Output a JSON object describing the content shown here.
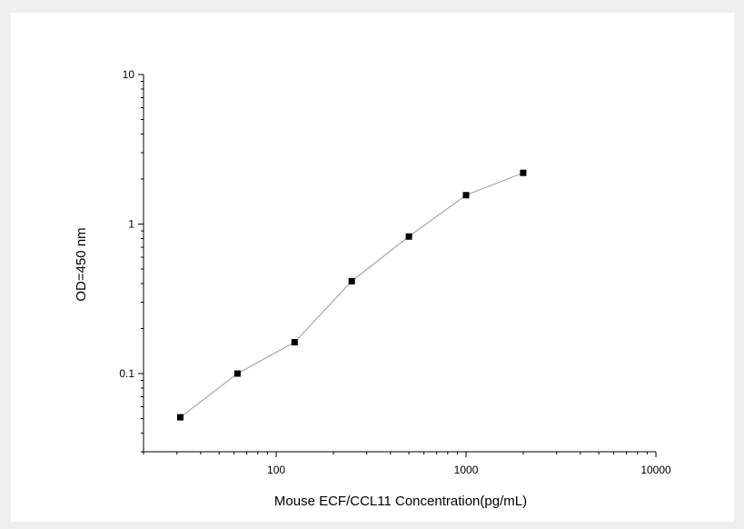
{
  "chart_data": {
    "type": "scatter",
    "xlabel": "Mouse ECF/CCL11  Concentration(pg/mL)",
    "ylabel": "OD=450 nm",
    "x_scale": "log",
    "y_scale": "log",
    "xlim": [
      20,
      10000
    ],
    "ylim": [
      0.03,
      10
    ],
    "x_ticks": [
      100,
      1000,
      10000
    ],
    "x_tick_labels": [
      "100",
      "1000",
      "10000"
    ],
    "y_ticks": [
      0.1,
      1,
      10
    ],
    "y_tick_labels": [
      "0.1",
      "1",
      "10"
    ],
    "grid": false,
    "legend": "none",
    "series": [
      {
        "x": [
          31.25,
          62.5,
          125,
          250,
          500,
          1000,
          2000
        ],
        "y": [
          0.051,
          0.1,
          0.162,
          0.415,
          0.825,
          1.56,
          2.2
        ],
        "marker": "square",
        "line": true,
        "marker_color": "#000000",
        "line_color": "#999999"
      }
    ]
  }
}
